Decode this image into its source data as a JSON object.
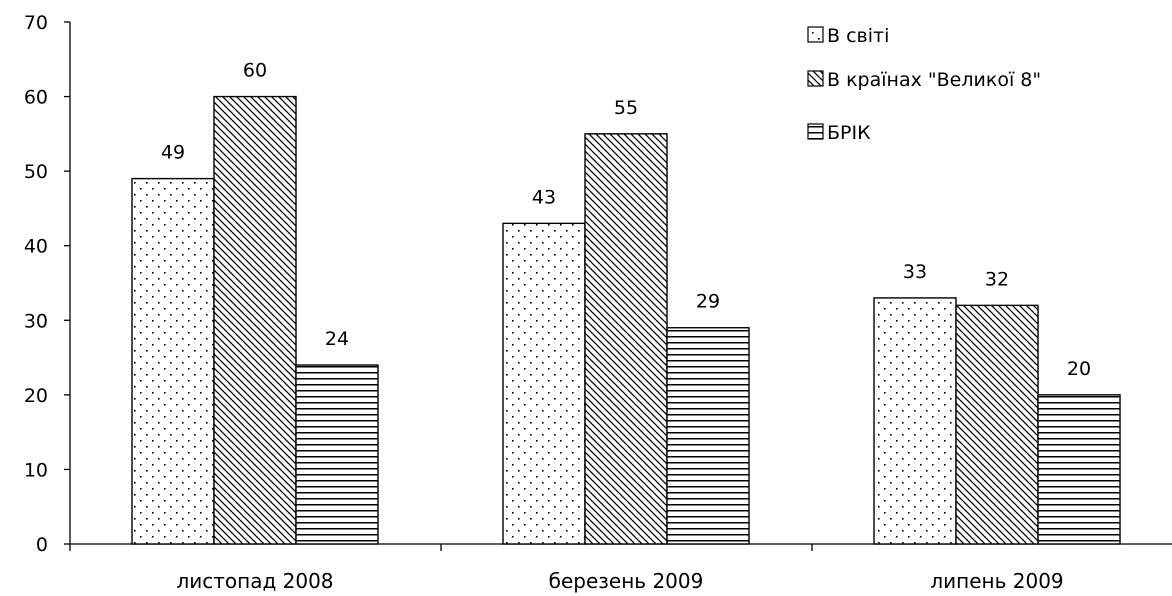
{
  "chart_data": {
    "type": "bar",
    "categories": [
      "листопад 2008",
      "березень 2009",
      "липень 2009"
    ],
    "series": [
      {
        "name": "В світі",
        "values": [
          49,
          43,
          33
        ],
        "pattern": "dots"
      },
      {
        "name": "В країнах \"Великої 8\"",
        "values": [
          60,
          55,
          32
        ],
        "pattern": "diagonal"
      },
      {
        "name": "БРІК",
        "values": [
          24,
          29,
          20
        ],
        "pattern": "horizontal"
      }
    ],
    "data_labels": [
      [
        "49",
        "60",
        "24"
      ],
      [
        "43",
        "55",
        "29"
      ],
      [
        "33",
        "32",
        "20"
      ]
    ],
    "y_ticks": [
      "0",
      "10",
      "20",
      "30",
      "40",
      "50",
      "60",
      "70"
    ],
    "ylim": [
      0,
      70
    ],
    "grid": false,
    "legend_position": "top-right",
    "title": "",
    "xlabel": "",
    "ylabel": ""
  }
}
